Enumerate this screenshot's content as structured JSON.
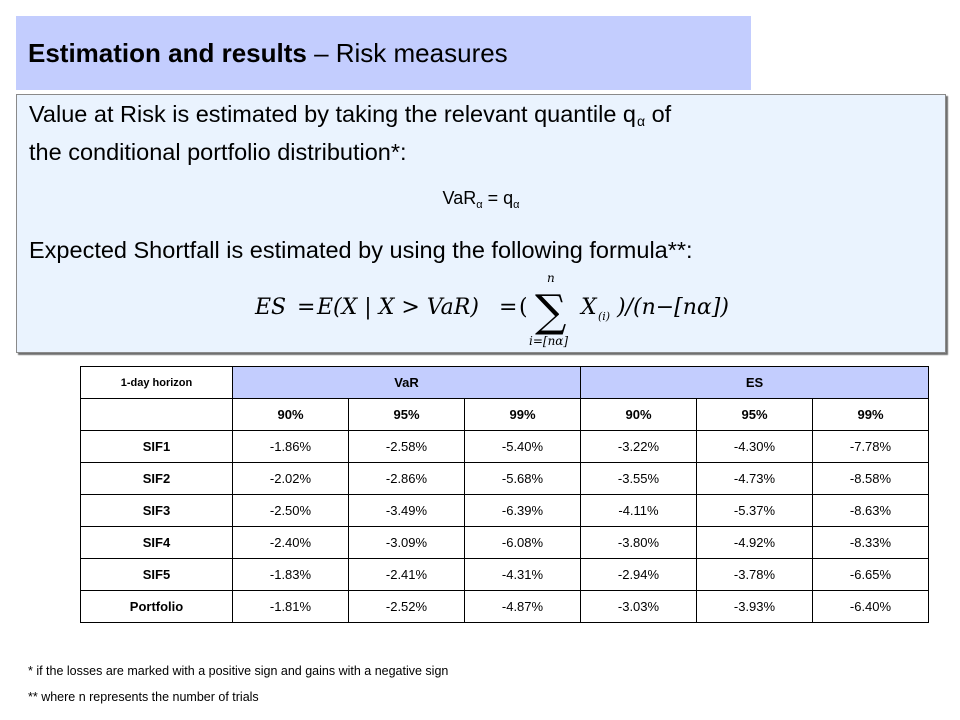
{
  "header": {
    "title_bold": "Estimation and results",
    "title_rest": " – Risk measures"
  },
  "explanation": {
    "var_line1_text": "Value at Risk is estimated by taking the relevant quantile q",
    "var_line1_sub": "α",
    "var_line1_end": " of",
    "var_line2": "the conditional portfolio distribution*:",
    "var_eq_left": "VaR",
    "var_eq_sub": "α",
    "var_eq_mid": " = q",
    "var_eq_sub2": "α",
    "es_line": "Expected Shortfall is estimated by using the following formula**:",
    "formula": {
      "lhs": "ES",
      "eq1": "=",
      "expectation": "E(X | X > VaR)",
      "eq2": "=",
      "open": "(",
      "sum_upper": "n",
      "sum_lower": "i=[nα]",
      "term": "X",
      "term_sub": "(i)",
      "close": ")/(n−[nα])"
    }
  },
  "table": {
    "corner_label": "1-day horizon",
    "groups": [
      "VaR",
      "ES"
    ],
    "confidence_levels": [
      "90%",
      "95%",
      "99%",
      "90%",
      "95%",
      "99%"
    ],
    "rows": [
      {
        "name": "SIF1",
        "values": [
          "-1.86%",
          "-2.58%",
          "-5.40%",
          "-3.22%",
          "-4.30%",
          "-7.78%"
        ]
      },
      {
        "name": "SIF2",
        "values": [
          "-2.02%",
          "-2.86%",
          "-5.68%",
          "-3.55%",
          "-4.73%",
          "-8.58%"
        ]
      },
      {
        "name": "SIF3",
        "values": [
          "-2.50%",
          "-3.49%",
          "-6.39%",
          "-4.11%",
          "-5.37%",
          "-8.63%"
        ]
      },
      {
        "name": "SIF4",
        "values": [
          "-2.40%",
          "-3.09%",
          "-6.08%",
          "-3.80%",
          "-4.92%",
          "-8.33%"
        ]
      },
      {
        "name": "SIF5",
        "values": [
          "-1.83%",
          "-2.41%",
          "-4.31%",
          "-2.94%",
          "-3.78%",
          "-6.65%"
        ]
      },
      {
        "name": "Portfolio",
        "values": [
          "-1.81%",
          "-2.52%",
          "-4.87%",
          "-3.03%",
          "-3.93%",
          "-6.40%"
        ]
      }
    ]
  },
  "footnotes": {
    "note1": "*   if the losses are marked with a positive sign and gains with a negative sign",
    "note2": "** where n represents the number of trials"
  }
}
